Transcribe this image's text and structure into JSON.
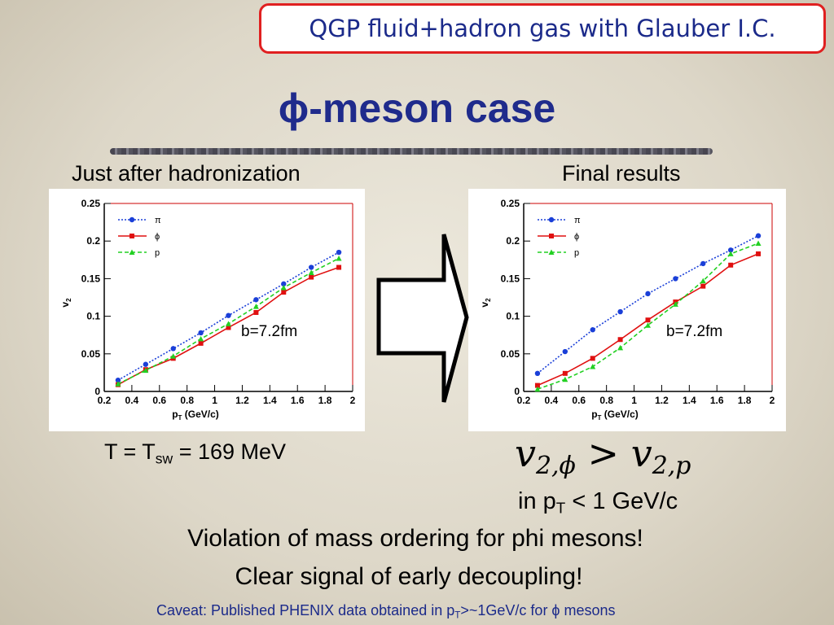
{
  "header": {
    "badge": "QGP fluid+hadron gas with Glauber I.C.",
    "title": "ϕ-meson case"
  },
  "panels": {
    "left_caption": "Just after hadronization",
    "right_caption": "Final results"
  },
  "notes": {
    "temperature": [
      "T = T",
      "sw",
      " = 169 MeV"
    ],
    "formula": [
      "v",
      "2,ϕ",
      " > v",
      "2,p"
    ],
    "range": [
      "in p",
      "T",
      " < 1 GeV/c"
    ],
    "line1": "Violation of mass ordering for phi mesons!",
    "line2": "Clear signal of early decoupling!",
    "caveat": [
      "Caveat: Published PHENIX data obtained in p",
      "T",
      ">~1GeV/c for ϕ mesons"
    ]
  },
  "chart_data": [
    {
      "type": "line",
      "annotation": "b=7.2fm",
      "xlabel": {
        "text": "p",
        "subscript": "T",
        "suffix": " (GeV/c)"
      },
      "ylabel": {
        "text": "v",
        "subscript": "2"
      },
      "x": [
        0.3,
        0.5,
        0.7,
        0.9,
        1.1,
        1.3,
        1.5,
        1.7,
        1.9
      ],
      "series": [
        {
          "name": "π",
          "color": "#1a3fd8",
          "marker": "circle",
          "line_style": "dotted",
          "values": [
            0.015,
            0.036,
            0.057,
            0.078,
            0.101,
            0.122,
            0.143,
            0.165,
            0.185
          ]
        },
        {
          "name": "ϕ",
          "color": "#e01010",
          "marker": "square",
          "line_style": "solid",
          "values": [
            0.009,
            0.029,
            0.044,
            0.064,
            0.085,
            0.105,
            0.132,
            0.152,
            0.165
          ]
        },
        {
          "name": "p",
          "color": "#22d022",
          "marker": "triangle",
          "line_style": "dashed",
          "values": [
            0.01,
            0.028,
            0.047,
            0.07,
            0.09,
            0.113,
            0.138,
            0.158,
            0.177
          ]
        }
      ],
      "xlim": [
        0.2,
        2
      ],
      "xticks": [
        0.2,
        0.4,
        0.6,
        0.8,
        1,
        1.2,
        1.4,
        1.6,
        1.8,
        2
      ],
      "ylim": [
        0,
        0.25
      ],
      "yticks": [
        0,
        0.05,
        0.1,
        0.15,
        0.2,
        0.25
      ],
      "legend": "upper left"
    },
    {
      "type": "line",
      "annotation": "b=7.2fm",
      "xlabel": {
        "text": "p",
        "subscript": "T",
        "suffix": " (GeV/c)"
      },
      "ylabel": {
        "text": "v",
        "subscript": "2"
      },
      "x": [
        0.3,
        0.5,
        0.7,
        0.9,
        1.1,
        1.3,
        1.5,
        1.7,
        1.9
      ],
      "series": [
        {
          "name": "π",
          "color": "#1a3fd8",
          "marker": "circle",
          "line_style": "dotted",
          "values": [
            0.024,
            0.053,
            0.082,
            0.106,
            0.13,
            0.15,
            0.17,
            0.188,
            0.207
          ]
        },
        {
          "name": "ϕ",
          "color": "#e01010",
          "marker": "square",
          "line_style": "solid",
          "values": [
            0.008,
            0.024,
            0.044,
            0.069,
            0.095,
            0.119,
            0.14,
            0.168,
            0.183
          ]
        },
        {
          "name": "p",
          "color": "#22d022",
          "marker": "triangle",
          "line_style": "dashed",
          "values": [
            0.003,
            0.016,
            0.033,
            0.058,
            0.088,
            0.116,
            0.147,
            0.183,
            0.197
          ]
        }
      ],
      "xlim": [
        0.2,
        2
      ],
      "xticks": [
        0.2,
        0.4,
        0.6,
        0.8,
        1,
        1.2,
        1.4,
        1.6,
        1.8,
        2
      ],
      "ylim": [
        0,
        0.25
      ],
      "yticks": [
        0,
        0.05,
        0.1,
        0.15,
        0.2,
        0.25
      ],
      "legend": "upper left"
    }
  ]
}
